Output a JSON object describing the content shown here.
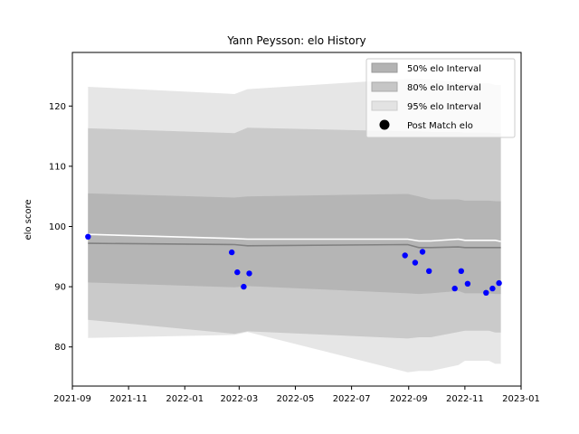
{
  "chart_data": {
    "type": "area",
    "title": "Yann Peysson: elo History",
    "xlabel": "",
    "ylabel": "elo score",
    "xlim": [
      "2021-09-01",
      "2023-01-01"
    ],
    "ylim": [
      73.5,
      128.9
    ],
    "x_ticks": [
      "2021-09",
      "2021-11",
      "2022-01",
      "2022-03",
      "2022-05",
      "2022-07",
      "2022-09",
      "2022-11",
      "2023-01"
    ],
    "y_ticks": [
      80,
      90,
      100,
      110,
      120
    ],
    "grid": false,
    "legend_position": "top-right",
    "legend": [
      "50% elo Interval",
      "80% elo Interval",
      "95% elo Interval",
      "Post Match elo"
    ],
    "colors": {
      "band50": "#b3b3b3",
      "band80": "#c6c6c6",
      "band95": "#e3e3e3",
      "median_line": "#808080",
      "mean_line": "#ffffff",
      "points": "#0000ff"
    },
    "series": [
      {
        "name": "95% elo Interval",
        "kind": "band",
        "x": [
          "2021-09-18",
          "2022-02-24",
          "2022-03-10",
          "2022-08-31",
          "2022-09-12",
          "2022-09-25",
          "2022-10-25",
          "2022-11-01",
          "2022-11-27",
          "2022-12-04",
          "2022-12-10"
        ],
        "low": [
          81.5,
          82.0,
          82.5,
          75.8,
          76.0,
          76.0,
          77.0,
          77.7,
          77.7,
          77.2,
          77.2
        ],
        "high": [
          123.2,
          122.0,
          122.8,
          124.5,
          124.5,
          124.4,
          124.0,
          123.8,
          123.8,
          123.5,
          123.5
        ]
      },
      {
        "name": "80% elo Interval",
        "kind": "band",
        "x": [
          "2021-09-18",
          "2022-02-24",
          "2022-03-10",
          "2022-08-31",
          "2022-09-12",
          "2022-09-25",
          "2022-10-25",
          "2022-11-01",
          "2022-11-27",
          "2022-12-04",
          "2022-12-10"
        ],
        "low": [
          84.5,
          82.2,
          82.6,
          81.4,
          81.6,
          81.6,
          82.5,
          82.7,
          82.7,
          82.4,
          82.4
        ],
        "high": [
          116.3,
          115.5,
          116.4,
          115.8,
          115.8,
          115.7,
          115.7,
          115.6,
          115.6,
          115.5,
          115.5
        ]
      },
      {
        "name": "50% elo Interval",
        "kind": "band",
        "x": [
          "2021-09-18",
          "2022-02-24",
          "2022-03-10",
          "2022-08-31",
          "2022-09-12",
          "2022-09-25",
          "2022-10-25",
          "2022-11-01",
          "2022-11-27",
          "2022-12-04",
          "2022-12-10"
        ],
        "low": [
          90.7,
          89.9,
          90.1,
          88.9,
          88.8,
          88.9,
          89.3,
          88.9,
          88.9,
          88.8,
          88.8
        ],
        "high": [
          105.5,
          104.8,
          105.0,
          105.4,
          105.0,
          104.5,
          104.5,
          104.3,
          104.3,
          104.2,
          104.2
        ]
      },
      {
        "name": "median",
        "kind": "line",
        "x": [
          "2021-09-18",
          "2022-02-24",
          "2022-03-10",
          "2022-08-31",
          "2022-09-12",
          "2022-09-25",
          "2022-10-25",
          "2022-11-01",
          "2022-11-27",
          "2022-12-04",
          "2022-12-10"
        ],
        "y": [
          97.2,
          97.0,
          96.8,
          97.0,
          96.5,
          96.5,
          96.6,
          96.5,
          96.5,
          96.5,
          96.5
        ]
      },
      {
        "name": "mean",
        "kind": "line",
        "x": [
          "2021-09-18",
          "2022-02-24",
          "2022-03-10",
          "2022-08-31",
          "2022-09-12",
          "2022-09-25",
          "2022-10-25",
          "2022-11-01",
          "2022-11-27",
          "2022-12-04",
          "2022-12-10"
        ],
        "y": [
          98.7,
          98.0,
          97.9,
          97.9,
          97.6,
          97.6,
          97.9,
          97.7,
          97.7,
          97.7,
          97.5
        ]
      },
      {
        "name": "Post Match elo",
        "kind": "scatter",
        "x": [
          "2021-09-18",
          "2022-02-21",
          "2022-02-27",
          "2022-03-06",
          "2022-03-12",
          "2022-08-28",
          "2022-09-08",
          "2022-09-16",
          "2022-09-23",
          "2022-10-21",
          "2022-10-28",
          "2022-11-04",
          "2022-11-24",
          "2022-12-01",
          "2022-12-08"
        ],
        "y": [
          98.3,
          95.7,
          92.4,
          90.0,
          92.2,
          95.2,
          94.0,
          95.8,
          92.6,
          89.7,
          92.6,
          90.5,
          89.0,
          89.7,
          90.6
        ]
      }
    ]
  }
}
